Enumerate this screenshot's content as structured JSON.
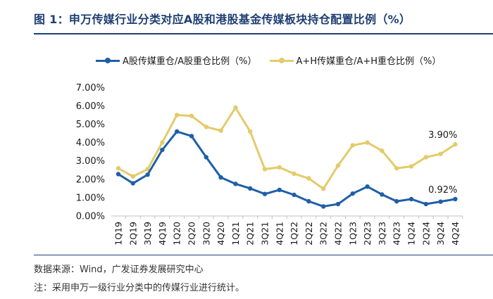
{
  "title": "图 1：申万传媒行业分类对应A股和港股基金传媒板块持仓配置比例（%）",
  "footer": {
    "source": "数据来源：Wind，广发证券发展研究中心",
    "note": "注：采用申万一级行业分类中的传媒行业进行统计。"
  },
  "chart_data": {
    "type": "line",
    "title": "",
    "xlabel": "",
    "ylabel": "",
    "ylim": [
      0,
      7
    ],
    "yticks": [
      "0.00%",
      "1.00%",
      "2.00%",
      "3.00%",
      "4.00%",
      "5.00%",
      "6.00%",
      "7.00%"
    ],
    "grid": false,
    "legend_position": "top",
    "categories": [
      "1Q19",
      "2Q19",
      "3Q19",
      "4Q19",
      "1Q20",
      "2Q20",
      "3Q20",
      "4Q20",
      "1Q21",
      "2Q21",
      "3Q21",
      "4Q21",
      "1Q22",
      "2Q22",
      "3Q22",
      "4Q22",
      "1Q23",
      "2Q23",
      "3Q23",
      "4Q23",
      "1Q24",
      "2Q24",
      "3Q24",
      "4Q24"
    ],
    "series": [
      {
        "name": "A股传媒重仓/A股重仓比例（%）",
        "color": "#1f5fa8",
        "values": [
          2.28,
          1.78,
          2.25,
          3.6,
          4.6,
          4.35,
          3.2,
          2.1,
          1.75,
          1.5,
          1.2,
          1.42,
          1.15,
          0.8,
          0.52,
          0.65,
          1.22,
          1.6,
          1.17,
          0.8,
          0.92,
          0.65,
          0.78,
          0.92
        ],
        "end_label": "0.92%"
      },
      {
        "name": "A+H传媒重仓/A+H重仓比例（%）",
        "color": "#e3cb6a",
        "values": [
          2.6,
          2.15,
          2.55,
          4.0,
          5.5,
          5.45,
          4.85,
          4.65,
          5.9,
          4.6,
          2.55,
          2.65,
          2.3,
          2.05,
          1.48,
          2.75,
          3.85,
          4.0,
          3.55,
          2.6,
          2.7,
          3.2,
          3.38,
          3.9
        ],
        "end_label": "3.90%"
      }
    ]
  }
}
